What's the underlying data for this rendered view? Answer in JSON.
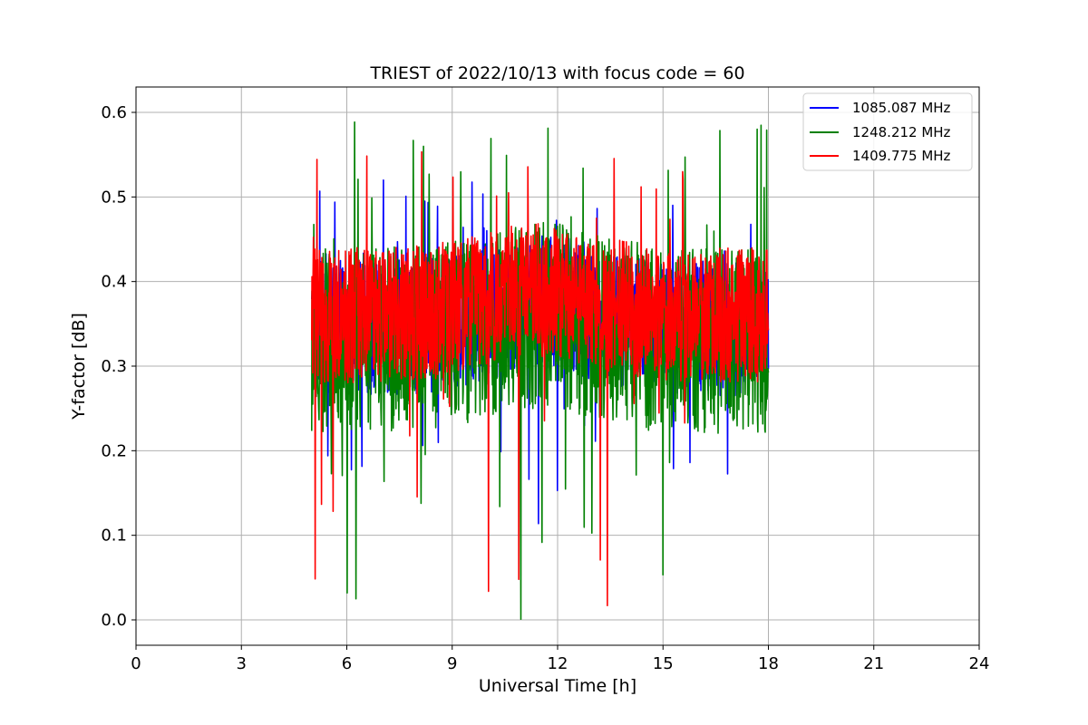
{
  "chart_data": {
    "type": "line",
    "title": "TRIEST of 2022/10/13 with focus code = 60",
    "xlabel": "Universal Time [h]",
    "ylabel": "Y-factor [dB]",
    "xlim": [
      0,
      24
    ],
    "ylim": [
      -0.03,
      0.63
    ],
    "x_ticks": [
      0,
      3,
      6,
      9,
      12,
      15,
      18,
      21,
      24
    ],
    "x_tick_labels": [
      "0",
      "3",
      "6",
      "9",
      "12",
      "15",
      "18",
      "21",
      "24"
    ],
    "y_ticks": [
      0.0,
      0.1,
      0.2,
      0.3,
      0.4,
      0.5,
      0.6
    ],
    "y_tick_labels": [
      "0.0",
      "0.1",
      "0.2",
      "0.3",
      "0.4",
      "0.5",
      "0.6"
    ],
    "grid": true,
    "legend_position": "top-right",
    "x_range_of_data": [
      5,
      18
    ],
    "series": [
      {
        "name": "1085.087 MHz",
        "color": "#0000ff",
        "mean": 0.345,
        "spread": 0.08,
        "observed_max": 0.52,
        "observed_min": 0.11
      },
      {
        "name": "1248.212 MHz",
        "color": "#008000",
        "mean": 0.33,
        "spread": 0.11,
        "observed_max": 0.6,
        "observed_min": 0.0
      },
      {
        "name": "1409.775 MHz",
        "color": "#ff0000",
        "mean": 0.36,
        "spread": 0.08,
        "observed_max": 0.56,
        "observed_min": 0.0
      }
    ]
  }
}
